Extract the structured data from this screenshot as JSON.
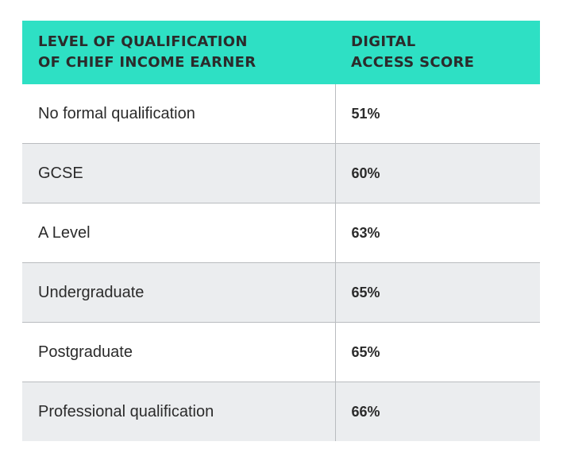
{
  "chart_data": {
    "type": "table",
    "columns": [
      {
        "line1": "LEVEL OF QUALIFICATION",
        "line2": "OF CHIEF INCOME EARNER"
      },
      {
        "line1": "DIGITAL",
        "line2": "ACCESS SCORE"
      }
    ],
    "rows": [
      {
        "qualification": "No formal qualification",
        "score_label": "51%",
        "score": 51
      },
      {
        "qualification": "GCSE",
        "score_label": "60%",
        "score": 60
      },
      {
        "qualification": "A Level",
        "score_label": "63%",
        "score": 63
      },
      {
        "qualification": "Undergraduate",
        "score_label": "65%",
        "score": 65
      },
      {
        "qualification": "Postgraduate",
        "score_label": "65%",
        "score": 65
      },
      {
        "qualification": "Professional qualification",
        "score_label": "66%",
        "score": 66
      }
    ],
    "colors": {
      "header_bg": "#2ee0c4",
      "alt_row_bg": "#ebedef",
      "divider": "#b9bcbf",
      "text": "#2b2b2b"
    }
  }
}
